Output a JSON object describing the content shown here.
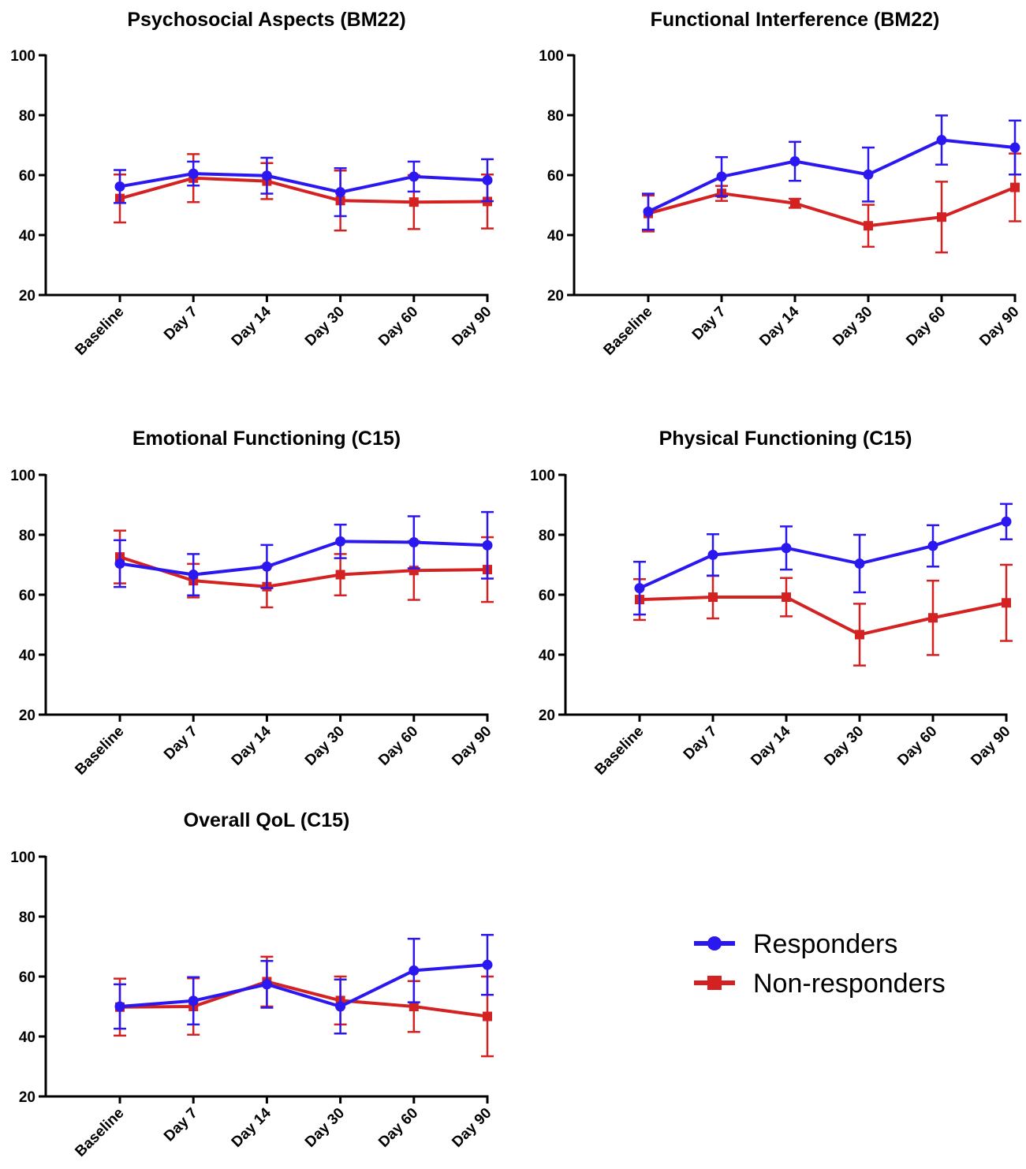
{
  "colors": {
    "responders": "#2b17f0",
    "non_responders": "#d42222",
    "axis": "#000000"
  },
  "legend": {
    "placement": "bottom-right",
    "items": [
      {
        "label": "Responders",
        "marker": "circle",
        "color": "#2b17f0"
      },
      {
        "label": "Non-responders",
        "marker": "square",
        "color": "#d42222"
      }
    ]
  },
  "chart_data": [
    {
      "type": "line",
      "title": "Psychosocial Aspects (BM22)",
      "categories": [
        "Baseline",
        "Day 7",
        "Day 14",
        "Day 30",
        "Day 60",
        "Day 90"
      ],
      "ylim": [
        20,
        100
      ],
      "yticks": [
        "20",
        "40",
        "60",
        "80",
        "100"
      ],
      "series": [
        {
          "name": "Responders",
          "values": [
            56.2,
            60.5,
            59.8,
            54.3,
            59.5,
            58.3
          ],
          "err": [
            5.5,
            4.0,
            6.0,
            8.0,
            5.0,
            7.0
          ]
        },
        {
          "name": "Non-responders",
          "values": [
            52.2,
            59.0,
            58.0,
            51.5,
            51.0,
            51.2
          ],
          "err": [
            8.0,
            8.0,
            6.0,
            10.0,
            9.0,
            9.0
          ]
        }
      ]
    },
    {
      "type": "line",
      "title": "Functional Interference (BM22)",
      "categories": [
        "Baseline",
        "Day 7",
        "Day 14",
        "Day 30",
        "Day 60",
        "Day 90"
      ],
      "ylim": [
        20,
        100
      ],
      "yticks": [
        "20",
        "40",
        "60",
        "80",
        "100"
      ],
      "series": [
        {
          "name": "Responders",
          "values": [
            47.8,
            59.5,
            64.6,
            60.2,
            71.7,
            69.2
          ],
          "err": [
            6.0,
            6.5,
            6.5,
            9.0,
            8.2,
            9.0
          ]
        },
        {
          "name": "Non-responders",
          "values": [
            47.2,
            53.9,
            50.6,
            43.1,
            46.0,
            55.9
          ],
          "err": [
            6.0,
            2.5,
            1.5,
            7.0,
            11.8,
            11.3
          ]
        }
      ]
    },
    {
      "type": "line",
      "title": "Emotional Functioning (C15)",
      "categories": [
        "Baseline",
        "Day 7",
        "Day 14",
        "Day 30",
        "Day 60",
        "Day 90"
      ],
      "ylim": [
        20,
        100
      ],
      "yticks": [
        "20",
        "40",
        "60",
        "80",
        "100"
      ],
      "series": [
        {
          "name": "Responders",
          "values": [
            70.4,
            66.7,
            69.4,
            77.8,
            77.5,
            76.5
          ],
          "err": [
            7.8,
            6.9,
            7.2,
            5.6,
            8.7,
            11.1
          ]
        },
        {
          "name": "Non-responders",
          "values": [
            72.6,
            64.7,
            62.7,
            66.7,
            68.1,
            68.4
          ],
          "err": [
            8.8,
            5.6,
            6.9,
            6.9,
            9.8,
            10.8
          ]
        }
      ]
    },
    {
      "type": "line",
      "title": "Physical Functioning (C15)",
      "categories": [
        "Baseline",
        "Day 7",
        "Day 14",
        "Day 30",
        "Day 60",
        "Day 90"
      ],
      "ylim": [
        20,
        100
      ],
      "yticks": [
        "20",
        "40",
        "60",
        "80",
        "100"
      ],
      "series": [
        {
          "name": "Responders",
          "values": [
            62.2,
            73.3,
            75.6,
            70.4,
            76.3,
            84.4
          ],
          "err": [
            8.8,
            6.9,
            7.2,
            9.6,
            6.9,
            5.9
          ]
        },
        {
          "name": "Non-responders",
          "values": [
            58.4,
            59.2,
            59.2,
            46.7,
            52.3,
            57.3
          ],
          "err": [
            6.8,
            7.1,
            6.4,
            10.3,
            12.4,
            12.7
          ]
        }
      ]
    },
    {
      "type": "line",
      "title": "Overall QoL (C15)",
      "categories": [
        "Baseline",
        "Day 7",
        "Day 14",
        "Day 30",
        "Day 60",
        "Day 90"
      ],
      "ylim": [
        20,
        100
      ],
      "yticks": [
        "20",
        "40",
        "60",
        "80",
        "100"
      ],
      "series": [
        {
          "name": "Responders",
          "values": [
            50.0,
            51.9,
            57.4,
            50.0,
            62.0,
            63.9
          ],
          "err": [
            7.4,
            7.9,
            7.8,
            9.0,
            10.6,
            10.0
          ]
        },
        {
          "name": "Non-responders",
          "values": [
            49.8,
            50.0,
            58.3,
            52.0,
            50.0,
            46.7
          ],
          "err": [
            9.5,
            9.4,
            8.3,
            8.0,
            8.5,
            13.3
          ]
        }
      ]
    }
  ]
}
